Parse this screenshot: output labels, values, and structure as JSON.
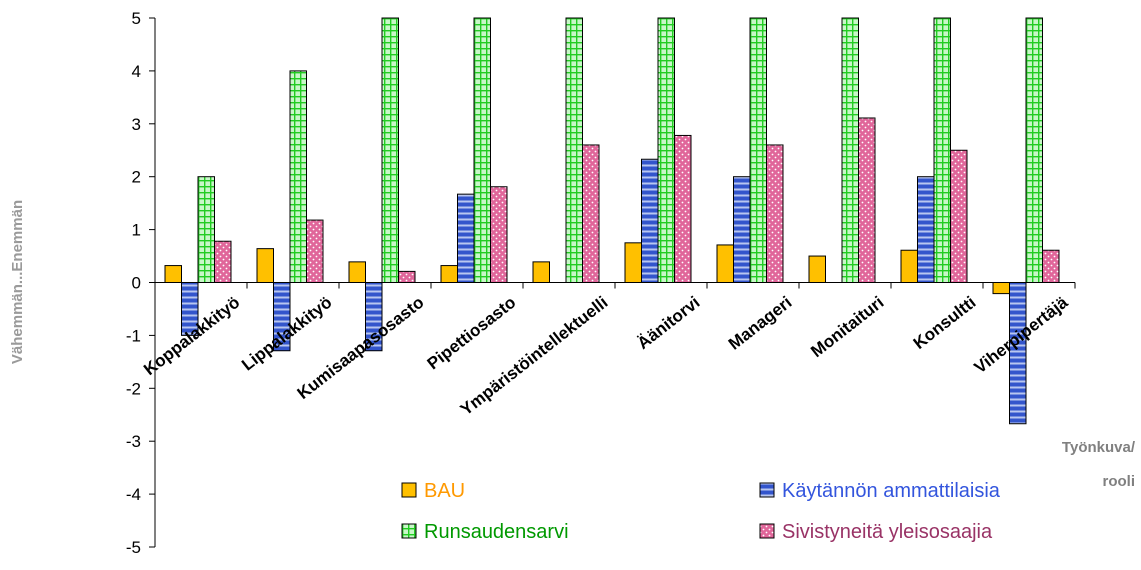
{
  "chart_data": {
    "type": "bar",
    "categories": [
      "Koppalakkityö",
      "Lippalakkityö",
      "Kumisaapasosasto",
      "Pipettiosasto",
      "Ympäristöintellektuelli",
      "Äänitorvi",
      "Manageri",
      "Monitaituri",
      "Konsultti",
      "Viherpipertäjä"
    ],
    "series": [
      {
        "name": "BAU",
        "values": [
          0.32,
          0.64,
          0.39,
          0.32,
          0.39,
          0.75,
          0.71,
          0.5,
          0.61,
          -0.21
        ],
        "color": "#FFC000",
        "legend_color": "#FF9900"
      },
      {
        "name": "Käytännön ammattilaisia",
        "values": [
          -1.0,
          -1.29,
          -1.29,
          1.67,
          0,
          2.33,
          2.0,
          0,
          2.0,
          -2.67
        ],
        "color": "#3355CC",
        "legend_color": "#3355DD"
      },
      {
        "name": "Runsaudensarvi",
        "values": [
          2.0,
          4.0,
          5.0,
          5.0,
          5.0,
          5.0,
          5.0,
          5.0,
          5.0,
          5.0
        ],
        "color": "#33DD33",
        "legend_color": "#009900"
      },
      {
        "name": "Sivistyneitä yleisosaajia",
        "values": [
          0.78,
          1.18,
          0.21,
          1.81,
          2.6,
          2.78,
          2.6,
          3.11,
          2.5,
          0.61
        ],
        "color": "#E0669A",
        "legend_color": "#993366"
      }
    ],
    "ylim": [
      -5,
      5
    ],
    "yticks": [
      5,
      4,
      3,
      2,
      1,
      0,
      -1,
      -2,
      -3,
      -4,
      -5
    ],
    "ylabel": "Vähemmän...Enemmän",
    "xlabel": [
      "Työnkuva/",
      "rooli"
    ],
    "legend": "bottom",
    "grid": false
  }
}
